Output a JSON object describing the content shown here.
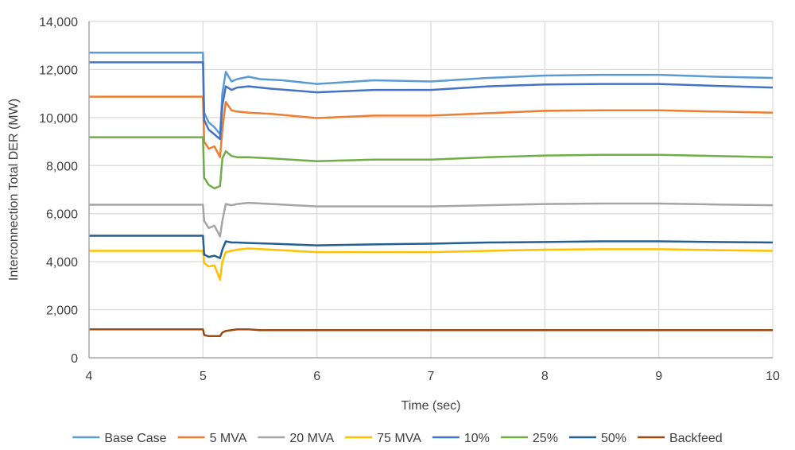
{
  "chart_data": {
    "type": "line",
    "title": "",
    "xlabel": "Time (sec)",
    "ylabel": "Interconnection Total DER (MW)",
    "xlim": [
      4,
      10
    ],
    "ylim": [
      0,
      14000
    ],
    "grid": true,
    "legend_position": "bottom",
    "x_ticks": [
      {
        "value": 4,
        "label": "4"
      },
      {
        "value": 5,
        "label": "5"
      },
      {
        "value": 6,
        "label": "6"
      },
      {
        "value": 7,
        "label": "7"
      },
      {
        "value": 8,
        "label": "8"
      },
      {
        "value": 9,
        "label": "9"
      },
      {
        "value": 10,
        "label": "10"
      }
    ],
    "y_ticks": [
      {
        "value": 0,
        "label": "0"
      },
      {
        "value": 2000,
        "label": "2,000"
      },
      {
        "value": 4000,
        "label": "4,000"
      },
      {
        "value": 6000,
        "label": "6,000"
      },
      {
        "value": 8000,
        "label": "8,000"
      },
      {
        "value": 10000,
        "label": "10,000"
      },
      {
        "value": 12000,
        "label": "12,000"
      },
      {
        "value": 14000,
        "label": "14,000"
      }
    ],
    "series": [
      {
        "name": "Base Case",
        "color": "#5B9BD5",
        "x": [
          4,
          5,
          5.01,
          5.05,
          5.1,
          5.15,
          5.17,
          5.2,
          5.25,
          5.3,
          5.4,
          5.5,
          5.7,
          6.0,
          6.5,
          7.0,
          7.5,
          8.0,
          8.5,
          9.0,
          9.5,
          10
        ],
        "y": [
          12700,
          12700,
          10200,
          9800,
          9600,
          9300,
          11000,
          11900,
          11500,
          11600,
          11700,
          11600,
          11550,
          11400,
          11550,
          11500,
          11650,
          11750,
          11780,
          11780,
          11700,
          11650
        ]
      },
      {
        "name": "5 MVA",
        "color": "#ED7D31",
        "x": [
          4,
          5,
          5.01,
          5.05,
          5.1,
          5.15,
          5.17,
          5.2,
          5.25,
          5.3,
          5.4,
          5.6,
          6.0,
          6.5,
          7.0,
          7.5,
          8.0,
          8.5,
          9.0,
          9.5,
          10
        ],
        "y": [
          10870,
          10870,
          9000,
          8700,
          8800,
          8350,
          9500,
          10650,
          10300,
          10250,
          10200,
          10150,
          9980,
          10080,
          10080,
          10180,
          10280,
          10300,
          10300,
          10250,
          10200
        ]
      },
      {
        "name": "20 MVA",
        "color": "#A5A5A5",
        "x": [
          4,
          5,
          5.01,
          5.05,
          5.1,
          5.15,
          5.17,
          5.2,
          5.25,
          5.3,
          5.4,
          5.6,
          6.0,
          6.5,
          7.0,
          7.5,
          8.0,
          8.5,
          9.0,
          9.5,
          10
        ],
        "y": [
          6370,
          6370,
          5700,
          5400,
          5500,
          5050,
          5700,
          6400,
          6350,
          6400,
          6450,
          6400,
          6300,
          6300,
          6300,
          6350,
          6400,
          6420,
          6420,
          6380,
          6350
        ]
      },
      {
        "name": "75 MVA",
        "color": "#FFC000",
        "x": [
          4,
          5,
          5.01,
          5.05,
          5.1,
          5.15,
          5.17,
          5.2,
          5.25,
          5.3,
          5.4,
          5.6,
          6.0,
          6.5,
          7.0,
          7.5,
          8.0,
          8.5,
          9.0,
          9.5,
          10
        ],
        "y": [
          4450,
          4450,
          3950,
          3800,
          3850,
          3250,
          4000,
          4400,
          4450,
          4500,
          4550,
          4500,
          4400,
          4400,
          4400,
          4450,
          4500,
          4520,
          4520,
          4480,
          4450
        ]
      },
      {
        "name": "10%",
        "color": "#4472C4",
        "x": [
          4,
          5,
          5.01,
          5.05,
          5.1,
          5.15,
          5.17,
          5.2,
          5.25,
          5.3,
          5.4,
          5.6,
          6.0,
          6.5,
          7.0,
          7.5,
          8.0,
          8.5,
          9.0,
          9.5,
          10
        ],
        "y": [
          12300,
          12300,
          9900,
          9500,
          9300,
          9100,
          10500,
          11300,
          11150,
          11250,
          11300,
          11200,
          11050,
          11150,
          11150,
          11300,
          11380,
          11400,
          11400,
          11320,
          11250
        ]
      },
      {
        "name": "25%",
        "color": "#70AD47",
        "x": [
          4,
          5,
          5.01,
          5.05,
          5.1,
          5.15,
          5.17,
          5.2,
          5.25,
          5.3,
          5.4,
          5.6,
          6.0,
          6.5,
          7.0,
          7.5,
          8.0,
          8.5,
          9.0,
          9.5,
          10
        ],
        "y": [
          9180,
          9180,
          7500,
          7200,
          7050,
          7150,
          8300,
          8600,
          8400,
          8350,
          8350,
          8300,
          8180,
          8250,
          8250,
          8350,
          8420,
          8450,
          8450,
          8400,
          8350
        ]
      },
      {
        "name": "50%",
        "color": "#255E91",
        "x": [
          4,
          5,
          5.01,
          5.05,
          5.1,
          5.15,
          5.17,
          5.2,
          5.25,
          5.3,
          5.4,
          5.6,
          6.0,
          6.5,
          7.0,
          7.5,
          8.0,
          8.5,
          9.0,
          9.5,
          10
        ],
        "y": [
          5080,
          5080,
          4300,
          4200,
          4250,
          4150,
          4500,
          4850,
          4800,
          4800,
          4780,
          4750,
          4680,
          4720,
          4750,
          4800,
          4820,
          4850,
          4850,
          4820,
          4800
        ]
      },
      {
        "name": "Backfeed",
        "color": "#9E480E",
        "x": [
          4,
          5,
          5.01,
          5.05,
          5.1,
          5.15,
          5.17,
          5.2,
          5.25,
          5.3,
          5.4,
          5.5,
          6.0,
          7.0,
          8.0,
          9.0,
          10
        ],
        "y": [
          1180,
          1180,
          950,
          900,
          900,
          900,
          1050,
          1120,
          1150,
          1180,
          1180,
          1150,
          1150,
          1150,
          1150,
          1150,
          1150
        ]
      }
    ]
  }
}
